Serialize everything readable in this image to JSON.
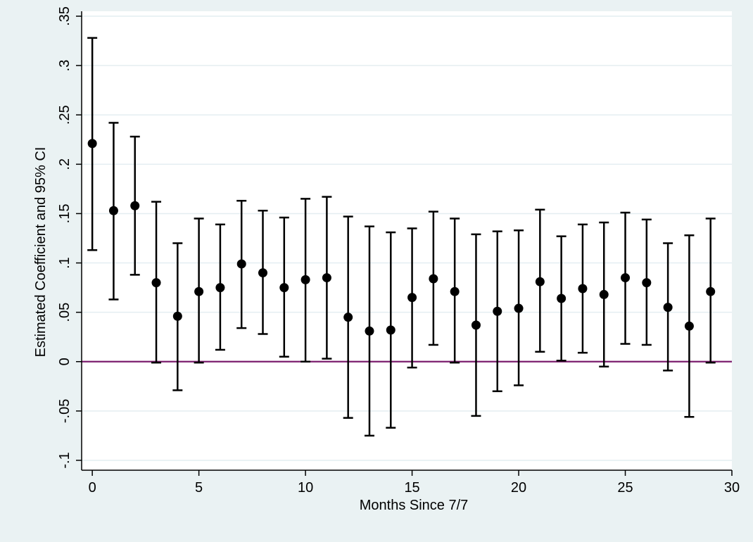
{
  "chart_data": {
    "type": "scatter",
    "title": "",
    "xlabel": "Months Since 7/7",
    "ylabel": "Estimated Coefficient and 95% CI",
    "xlim": [
      -0.5,
      30
    ],
    "ylim": [
      -0.11,
      0.355
    ],
    "x_ticks": [
      0,
      5,
      10,
      15,
      20,
      25,
      30
    ],
    "x_tick_labels": [
      "0",
      "5",
      "10",
      "15",
      "20",
      "25",
      "30"
    ],
    "y_ticks": [
      -0.1,
      -0.05,
      0,
      0.05,
      0.1,
      0.15,
      0.2,
      0.25,
      0.3,
      0.35
    ],
    "y_tick_labels": [
      "-.1",
      "-.05",
      "0",
      ".05",
      ".1",
      ".15",
      ".2",
      ".25",
      ".3",
      ".35"
    ],
    "grid": "horizontal",
    "reference_line": {
      "y": 0,
      "color": "#7b1e6e"
    },
    "colors": {
      "background": "#eaf2f3",
      "plot_background": "#ffffff",
      "grid": "#e4eef1",
      "marker": "#000000"
    },
    "series": [
      {
        "x": [
          0,
          1,
          2,
          3,
          4,
          5,
          6,
          7,
          8,
          9,
          10,
          11,
          12,
          13,
          14,
          15,
          16,
          17,
          18,
          19,
          20,
          21,
          22,
          23,
          24,
          25,
          26,
          27,
          28,
          29
        ],
        "estimate": [
          0.221,
          0.153,
          0.158,
          0.08,
          0.046,
          0.071,
          0.075,
          0.099,
          0.09,
          0.075,
          0.083,
          0.085,
          0.045,
          0.031,
          0.032,
          0.065,
          0.084,
          0.071,
          0.037,
          0.051,
          0.054,
          0.081,
          0.064,
          0.074,
          0.068,
          0.085,
          0.08,
          0.055,
          0.036,
          0.071
        ],
        "ci_low": [
          0.113,
          0.063,
          0.088,
          -0.001,
          -0.029,
          -0.001,
          0.012,
          0.034,
          0.028,
          0.005,
          0.0,
          0.003,
          -0.057,
          -0.075,
          -0.067,
          -0.006,
          0.017,
          -0.001,
          -0.055,
          -0.03,
          -0.024,
          0.01,
          0.001,
          0.009,
          -0.005,
          0.018,
          0.017,
          -0.009,
          -0.056,
          -0.001
        ],
        "ci_high": [
          0.328,
          0.242,
          0.228,
          0.162,
          0.12,
          0.145,
          0.139,
          0.163,
          0.153,
          0.146,
          0.165,
          0.167,
          0.147,
          0.137,
          0.131,
          0.135,
          0.152,
          0.145,
          0.129,
          0.132,
          0.133,
          0.154,
          0.127,
          0.139,
          0.141,
          0.151,
          0.144,
          0.12,
          0.128,
          0.145
        ]
      }
    ]
  }
}
